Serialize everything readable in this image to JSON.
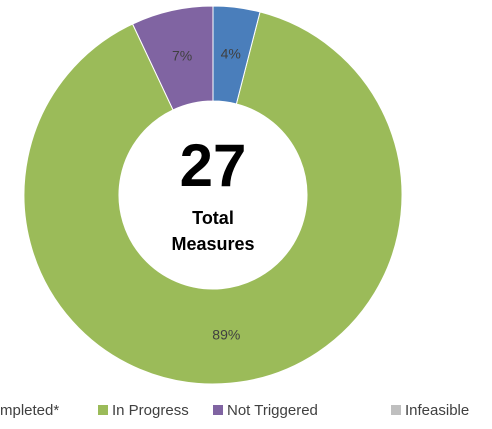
{
  "chart_data": {
    "type": "donut",
    "center_value": "27",
    "center_label": [
      "Total",
      "Measures"
    ],
    "categories": [
      "mpleted*",
      "In Progress",
      "Not Triggered",
      "Infeasible"
    ],
    "values": [
      4,
      89,
      7,
      0
    ],
    "value_labels": [
      "4%",
      "89%",
      "7%",
      null
    ],
    "colors": [
      "#4a7ebb",
      "#9bbb59",
      "#8064a2",
      "#bfbfbf"
    ],
    "legend": "bottom"
  }
}
